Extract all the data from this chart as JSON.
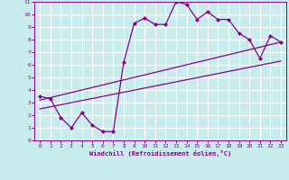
{
  "xlabel": "Windchill (Refroidissement éolien,°C)",
  "bg_color": "#c8ecec",
  "grid_color": "#ffffff",
  "line_color": "#880088",
  "xlim": [
    -0.5,
    23.5
  ],
  "ylim": [
    0,
    11
  ],
  "xticks": [
    0,
    1,
    2,
    3,
    4,
    5,
    6,
    7,
    8,
    9,
    10,
    11,
    12,
    13,
    14,
    15,
    16,
    17,
    18,
    19,
    20,
    21,
    22,
    23
  ],
  "yticks": [
    0,
    1,
    2,
    3,
    4,
    5,
    6,
    7,
    8,
    9,
    10,
    11
  ],
  "main_x": [
    0,
    1,
    2,
    3,
    4,
    5,
    6,
    7,
    8,
    9,
    10,
    11,
    12,
    13,
    14,
    15,
    16,
    17,
    18,
    19,
    20,
    21,
    22,
    23
  ],
  "main_y": [
    3.5,
    3.3,
    1.8,
    1.0,
    2.2,
    1.2,
    0.7,
    0.7,
    6.2,
    9.3,
    9.7,
    9.2,
    9.2,
    11.0,
    10.8,
    9.6,
    10.2,
    9.6,
    9.6,
    8.5,
    8.0,
    6.5,
    8.3,
    7.8
  ],
  "trend1_x": [
    0,
    23
  ],
  "trend1_y": [
    2.5,
    6.3
  ],
  "trend2_x": [
    0,
    23
  ],
  "trend2_y": [
    3.2,
    7.8
  ]
}
